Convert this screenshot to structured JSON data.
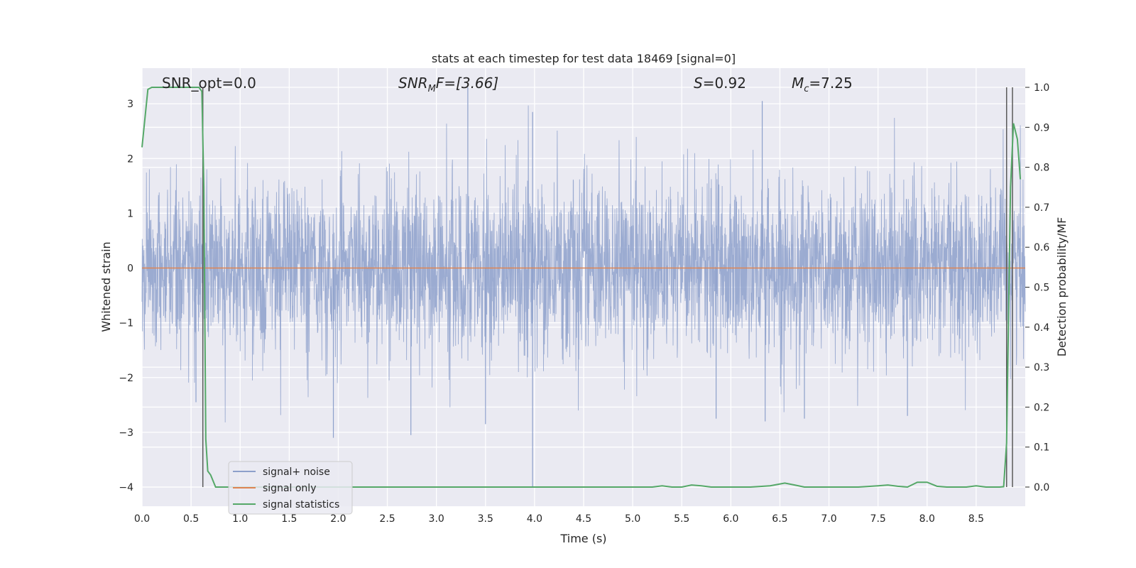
{
  "chart_data": {
    "type": "line",
    "title": "stats at each timestep for test data 18469 [signal=0]",
    "xlabel": "Time (s)",
    "ylabel": "Whitened strain",
    "y2label": "Detection probability/MF",
    "xlim": [
      0.0,
      9.0
    ],
    "ylim": [
      -4.35,
      3.65
    ],
    "y2lim": [
      -0.048,
      1.048
    ],
    "x_ticks": [
      "0.0",
      "0.5",
      "1.0",
      "1.5",
      "2.0",
      "2.5",
      "3.0",
      "3.5",
      "4.0",
      "4.5",
      "5.0",
      "5.5",
      "6.0",
      "6.5",
      "7.0",
      "7.5",
      "8.0",
      "8.5"
    ],
    "y_ticks": [
      "3",
      "2",
      "1",
      "0",
      "−1",
      "−2",
      "−3",
      "−4"
    ],
    "y2_ticks": [
      "1.0",
      "0.9",
      "0.8",
      "0.7",
      "0.6",
      "0.5",
      "0.4",
      "0.3",
      "0.2",
      "0.1",
      "0.0"
    ],
    "grid": true,
    "legend_placement": "lower-left",
    "annotations": {
      "snr_opt": "SNR_opt=0.0",
      "snr_mf_main": "SNR",
      "snr_mf_sub": "M",
      "snr_mf_rest": "F=[3.66]",
      "s_main": "S",
      "s_rest": "=0.92",
      "mc_main": "M",
      "mc_sub": "c",
      "mc_rest": "=7.25"
    },
    "vertical_lines_x": [
      0.62,
      8.81,
      8.87
    ],
    "series": [
      {
        "name": "signal+ noise",
        "color": "#8da0cb",
        "description_values": "noise, roughly N(0,0.75), range approx -4 to 3.3",
        "notable_spikes": [
          {
            "x": 3.32,
            "y": 3.3
          },
          {
            "x": 3.98,
            "y": 2.85
          },
          {
            "x": 3.98,
            "y": -4.0
          },
          {
            "x": 6.32,
            "y": 3.05
          },
          {
            "x": 1.95,
            "y": -3.1
          },
          {
            "x": 2.74,
            "y": -3.05
          },
          {
            "x": 3.5,
            "y": -2.85
          },
          {
            "x": 5.85,
            "y": -2.75
          },
          {
            "x": 6.35,
            "y": -2.8
          },
          {
            "x": 6.75,
            "y": -2.75
          },
          {
            "x": 7.8,
            "y": -2.7
          },
          {
            "x": 0.55,
            "y": -2.45
          }
        ]
      },
      {
        "name": "signal only",
        "color": "#dd8452",
        "x": [
          0.0,
          9.0
        ],
        "y": [
          0.0,
          0.0
        ]
      },
      {
        "name": "signal statistics",
        "color": "#55a868",
        "axis": "right",
        "x": [
          0.0,
          0.06,
          0.1,
          0.2,
          0.3,
          0.4,
          0.5,
          0.58,
          0.61,
          0.63,
          0.65,
          0.67,
          0.7,
          0.75,
          0.8,
          5.2,
          5.3,
          5.4,
          5.5,
          5.6,
          5.7,
          5.8,
          6.0,
          6.2,
          6.4,
          6.55,
          6.65,
          6.75,
          7.0,
          7.3,
          7.5,
          7.6,
          7.7,
          7.8,
          7.9,
          8.0,
          8.1,
          8.2,
          8.4,
          8.5,
          8.6,
          8.7,
          8.74,
          8.78,
          8.81,
          8.85,
          8.88,
          8.92,
          8.95
        ],
        "y": [
          0.85,
          0.995,
          1.0,
          1.0,
          1.0,
          1.0,
          1.0,
          1.0,
          0.99,
          0.75,
          0.12,
          0.04,
          0.03,
          0.0,
          0.0,
          0.0,
          0.003,
          0.0,
          0.0,
          0.005,
          0.003,
          0.0,
          0.0,
          0.0,
          0.003,
          0.01,
          0.005,
          0.0,
          0.0,
          0.0,
          0.003,
          0.005,
          0.002,
          0.0,
          0.012,
          0.012,
          0.002,
          0.0,
          0.0,
          0.003,
          0.0,
          0.0,
          0.0,
          0.001,
          0.11,
          0.75,
          0.91,
          0.87,
          0.77
        ]
      }
    ]
  },
  "legend": {
    "items": [
      {
        "label": "signal+ noise",
        "color": "#8da0cb"
      },
      {
        "label": "signal only",
        "color": "#dd8452"
      },
      {
        "label": "signal statistics",
        "color": "#55a868"
      }
    ]
  },
  "colors": {
    "plot_background": "#eaeaf2",
    "grid": "#ffffff",
    "vertical_line": "#5a5a5a",
    "text": "#262626"
  }
}
